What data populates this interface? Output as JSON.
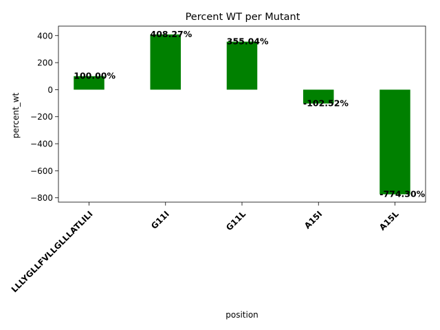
{
  "chart_data": {
    "type": "bar",
    "title": "Percent WT per Mutant",
    "xlabel": "position",
    "ylabel": "percent_wt",
    "categories": [
      "LLLYGLLFVLLGLLLATLILI",
      "G11I",
      "G11L",
      "A15I",
      "A15L"
    ],
    "values": [
      100.0,
      408.27,
      355.04,
      -102.52,
      -774.3
    ],
    "data_labels": [
      "100.00%",
      "408.27%",
      "355.04%",
      "-102.52%",
      "-774.30%"
    ],
    "yticks": [
      400,
      200,
      0,
      -200,
      -400,
      -600,
      -800
    ],
    "ytick_labels": [
      "400",
      "200",
      "0",
      "−200",
      "−400",
      "−600",
      "−800"
    ],
    "ylim": [
      -832,
      470
    ],
    "bar_color": "#008000",
    "grid": false,
    "legend": "none"
  }
}
